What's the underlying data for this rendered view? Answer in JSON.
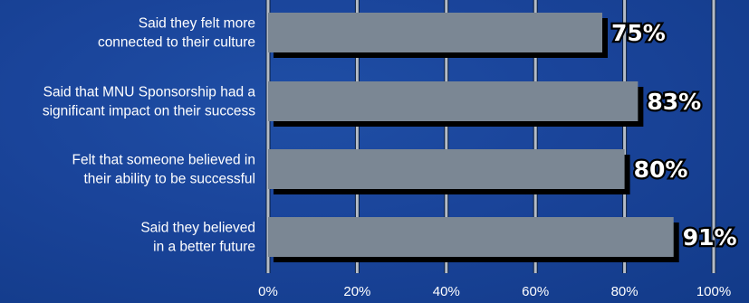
{
  "chart_data": {
    "type": "bar",
    "orientation": "horizontal",
    "categories": [
      [
        "Said they felt more",
        "connected to their culture"
      ],
      [
        "Said that MNU Sponsorship had a",
        "significant impact on their success"
      ],
      [
        "Felt that someone believed in",
        "their ability to be successful"
      ],
      [
        "Said they believed",
        "in a better future"
      ]
    ],
    "values": [
      75,
      83,
      80,
      91
    ],
    "value_labels": [
      "75%",
      "83%",
      "80%",
      "91%"
    ],
    "xlim": [
      0,
      100
    ],
    "x_ticks": [
      0,
      20,
      40,
      60,
      80,
      100
    ],
    "x_tick_labels": [
      "0%",
      "20%",
      "40%",
      "60%",
      "80%",
      "100%"
    ],
    "grid": true,
    "colors": {
      "background": "#1a449a",
      "bar": "#7b8794",
      "bar_shadow": "#000000",
      "gridline": "#b4bcc6",
      "text": "#ffffff"
    }
  }
}
